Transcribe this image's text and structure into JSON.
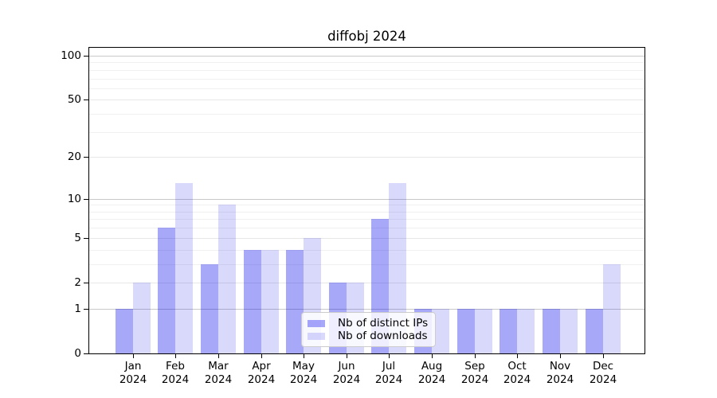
{
  "figure": {
    "title": "diffobj 2024"
  },
  "chart_data": {
    "type": "bar",
    "title": "diffobj 2024",
    "x_categories": [
      "Jan",
      "Feb",
      "Mar",
      "Apr",
      "May",
      "Jun",
      "Jul",
      "Aug",
      "Sep",
      "Oct",
      "Nov",
      "Dec"
    ],
    "x_year_label": "2024",
    "series": [
      {
        "name": "Nb of distinct IPs",
        "alpha": 0.34,
        "values": [
          1,
          6,
          3,
          4,
          4,
          2,
          7,
          1,
          1,
          1,
          1,
          1
        ]
      },
      {
        "name": "Nb of downloads",
        "alpha": 0.15,
        "values": [
          2,
          13,
          9,
          4,
          5,
          2,
          13,
          1,
          1,
          1,
          1,
          3
        ]
      }
    ],
    "y_scale": "log1p",
    "ylim": [
      0,
      115
    ],
    "y_ticks": [
      0,
      1,
      2,
      5,
      10,
      20,
      50,
      100
    ],
    "y_grid_decade": [
      1,
      10,
      100
    ],
    "y_grid_major": [
      2,
      5,
      20,
      50
    ],
    "y_grid_minor": [
      3,
      4,
      6,
      7,
      8,
      9,
      30,
      40,
      60,
      70,
      80,
      90
    ],
    "grid": true,
    "legend_position": "lower center"
  },
  "colors": {
    "bar_base": "#0000ee",
    "grid_decade": "#c9c9c9",
    "grid_major": "#e7e7e7",
    "grid_minor": "#f0f0f0",
    "axis": "#000000",
    "legend_border": "#cccccc",
    "legend_bg": "#ffffff",
    "background": "#ffffff"
  }
}
